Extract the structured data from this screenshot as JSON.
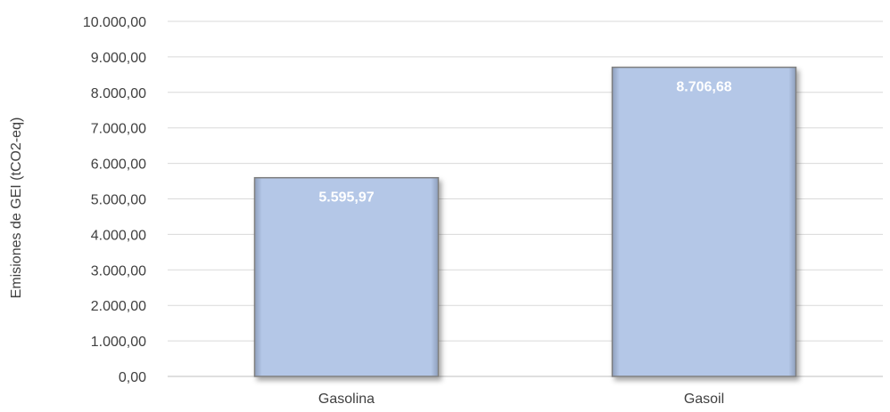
{
  "chart_data": {
    "type": "bar",
    "title": "",
    "xlabel": "",
    "ylabel": "Emisiones de GEI (tCO2-eq)",
    "categories": [
      "Gasolina",
      "Gasoil"
    ],
    "values": [
      5595.97,
      8706.68
    ],
    "data_labels": [
      "5.595,97",
      "8.706,68"
    ],
    "ylim": [
      0,
      10000
    ],
    "y_ticks": [
      0,
      1000,
      2000,
      3000,
      4000,
      5000,
      6000,
      7000,
      8000,
      9000,
      10000
    ],
    "y_tick_labels": [
      "0,00",
      "1.000,00",
      "2.000,00",
      "3.000,00",
      "4.000,00",
      "5.000,00",
      "6.000,00",
      "7.000,00",
      "8.000,00",
      "9.000,00",
      "10.000,00"
    ],
    "grid": true,
    "legend": "none"
  },
  "colors": {
    "bar_fill": "#b4c7e7",
    "bar_edge": "#7f7f7f",
    "grid": "#d9d9d9",
    "axis_line": "#bfbfbf",
    "text": "#404040",
    "data_label": "#ffffff"
  }
}
